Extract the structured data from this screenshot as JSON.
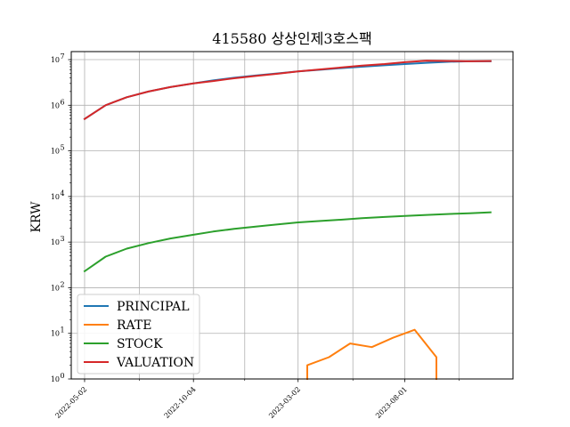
{
  "chart_data": {
    "type": "line",
    "title": "415580 상상인제3호스팩",
    "xlabel": "",
    "ylabel": "KRW",
    "yscale": "log",
    "ylim": [
      1,
      15000000
    ],
    "xlim": [
      "2022-04-13",
      "2024-01-02"
    ],
    "grid": true,
    "legend_position": "lower-left",
    "x_ticks": [
      "2022-05-02",
      "2022-10-04",
      "2023-03-02",
      "2023-08-01"
    ],
    "minor_x_ticks": [
      "2022-07-19",
      "2022-12-16",
      "2023-05-19",
      "2023-10-17"
    ],
    "y_ticks": [
      {
        "value": 1,
        "base": "10",
        "exp": "0"
      },
      {
        "value": 10,
        "base": "10",
        "exp": "1"
      },
      {
        "value": 100,
        "base": "10",
        "exp": "2"
      },
      {
        "value": 1000,
        "base": "10",
        "exp": "3"
      },
      {
        "value": 10000,
        "base": "10",
        "exp": "4"
      },
      {
        "value": 100000,
        "base": "10",
        "exp": "5"
      },
      {
        "value": 1000000,
        "base": "10",
        "exp": "6"
      },
      {
        "value": 10000000,
        "base": "10",
        "exp": "7"
      }
    ],
    "series": [
      {
        "name": "PRINCIPAL",
        "color": "#1f77b4",
        "x": [
          "2022-05-02",
          "2022-06-01",
          "2022-07-01",
          "2022-08-01",
          "2022-09-01",
          "2022-10-04",
          "2022-11-01",
          "2022-12-01",
          "2023-01-02",
          "2023-02-01",
          "2023-03-02",
          "2023-04-03",
          "2023-05-02",
          "2023-06-01",
          "2023-07-03",
          "2023-08-01",
          "2023-09-01",
          "2023-10-04",
          "2023-11-01",
          "2023-12-01"
        ],
        "y": [
          500000,
          1000000,
          1500000,
          2000000,
          2500000,
          3000000,
          3500000,
          4000000,
          4500000,
          5000000,
          5500000,
          6000000,
          6500000,
          7000000,
          7500000,
          8000000,
          8500000,
          9000000,
          9200000,
          9200000
        ]
      },
      {
        "name": "RATE",
        "color": "#ff7f0e",
        "x": [
          "2023-03-15",
          "2023-03-15",
          "2023-04-15",
          "2023-05-15",
          "2023-06-15",
          "2023-07-15",
          "2023-08-15",
          "2023-09-15",
          "2023-09-15"
        ],
        "y": [
          1,
          2,
          3,
          6,
          5,
          8,
          12,
          3,
          1
        ]
      },
      {
        "name": "STOCK",
        "color": "#2ca02c",
        "x": [
          "2022-05-02",
          "2022-06-01",
          "2022-07-01",
          "2022-08-01",
          "2022-09-01",
          "2022-10-04",
          "2022-11-01",
          "2022-12-01",
          "2023-01-02",
          "2023-02-01",
          "2023-03-02",
          "2023-04-03",
          "2023-05-02",
          "2023-06-01",
          "2023-07-03",
          "2023-08-01",
          "2023-09-01",
          "2023-10-04",
          "2023-11-01",
          "2023-12-01"
        ],
        "y": [
          230,
          480,
          720,
          950,
          1200,
          1450,
          1700,
          1950,
          2200,
          2450,
          2700,
          2900,
          3100,
          3350,
          3550,
          3750,
          3950,
          4150,
          4300,
          4500
        ]
      },
      {
        "name": "VALUATION",
        "color": "#d62728",
        "x": [
          "2022-05-02",
          "2022-06-01",
          "2022-07-01",
          "2022-08-01",
          "2022-09-01",
          "2022-10-04",
          "2022-11-01",
          "2022-12-01",
          "2023-01-02",
          "2023-02-01",
          "2023-03-02",
          "2023-04-03",
          "2023-05-02",
          "2023-06-01",
          "2023-07-03",
          "2023-08-01",
          "2023-09-01",
          "2023-10-04",
          "2023-11-01",
          "2023-12-01"
        ],
        "y": [
          500000,
          1000000,
          1500000,
          2000000,
          2500000,
          3000000,
          3400000,
          3900000,
          4400000,
          4900000,
          5500000,
          6100000,
          6700000,
          7400000,
          8000000,
          8800000,
          9500000,
          9300000,
          9200000,
          9300000
        ]
      }
    ]
  }
}
